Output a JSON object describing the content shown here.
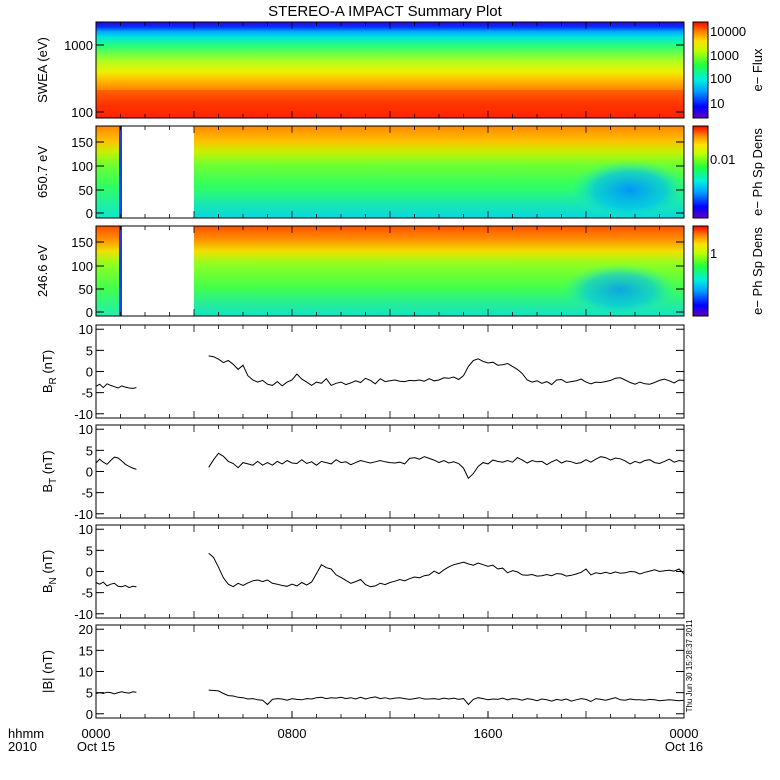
{
  "title": "STEREO-A IMPACT Summary Plot",
  "x_axis": {
    "caption_line1": "hhmm",
    "caption_line2": "2010",
    "ticks": [
      {
        "hour": 0,
        "label": "0000",
        "sub": "Oct 15"
      },
      {
        "hour": 8,
        "label": "0800",
        "sub": ""
      },
      {
        "hour": 16,
        "label": "1600",
        "sub": ""
      },
      {
        "hour": 24,
        "label": "0000",
        "sub": "Oct 16"
      }
    ]
  },
  "timestamp": "Thu Jun 30 15:28:37 2011",
  "chart_data": [
    {
      "type": "heatmap",
      "id": "swea",
      "ylabel": "SWEA (eV)",
      "yscale": "log",
      "ylim": [
        90,
        2200
      ],
      "yticks": [
        100,
        1000
      ],
      "ytick_labels": [
        "100",
        "1000"
      ],
      "xlim_hours": [
        0,
        24
      ],
      "colorbar": {
        "label": "e− Flux",
        "ticks": [
          "10",
          "100",
          "1000",
          "10000"
        ]
      },
      "data_gaps_hours": []
    },
    {
      "type": "heatmap",
      "id": "pad650",
      "ylabel": "650.7 eV",
      "ylim": [
        -10,
        180
      ],
      "yticks": [
        0,
        50,
        100,
        150
      ],
      "xlim_hours": [
        0,
        24
      ],
      "colorbar": {
        "label": "e− Ph Sp Dens",
        "ticks": [
          "0.01"
        ]
      },
      "data_gaps_hours": [
        [
          1.7,
          5.0
        ]
      ]
    },
    {
      "type": "heatmap",
      "id": "pad246",
      "ylabel": "246.6 eV",
      "ylim": [
        -10,
        180
      ],
      "yticks": [
        0,
        50,
        100,
        150
      ],
      "xlim_hours": [
        0,
        24
      ],
      "colorbar": {
        "label": "e− Ph Sp Dens",
        "ticks": [
          "1"
        ]
      },
      "data_gaps_hours": [
        [
          1.7,
          5.0
        ]
      ]
    },
    {
      "type": "line",
      "id": "br",
      "ylabel_base": "B",
      "ylabel_sub": "R",
      "ylabel_unit": "(nT)",
      "ylim": [
        -11,
        11
      ],
      "yticks": [
        -10,
        -5,
        0,
        5,
        10
      ],
      "xlim_hours": [
        0,
        24
      ],
      "x": [
        0,
        0.15,
        0.3,
        0.45,
        0.6,
        0.75,
        0.9,
        1.05,
        1.2,
        1.35,
        1.5,
        1.65,
        4.6,
        4.8,
        5.0,
        5.2,
        5.4,
        5.6,
        5.8,
        6.0,
        6.2,
        6.4,
        6.6,
        6.8,
        7.0,
        7.2,
        7.4,
        7.6,
        7.8,
        8.0,
        8.2,
        8.4,
        8.6,
        8.8,
        9.0,
        9.2,
        9.4,
        9.6,
        9.8,
        10.0,
        10.2,
        10.4,
        10.6,
        10.8,
        11.0,
        11.2,
        11.4,
        11.6,
        11.8,
        12.0,
        12.2,
        12.4,
        12.6,
        12.8,
        13.0,
        13.2,
        13.4,
        13.6,
        13.8,
        14.0,
        14.2,
        14.4,
        14.6,
        14.8,
        15.0,
        15.2,
        15.4,
        15.6,
        15.8,
        16.0,
        16.2,
        16.4,
        16.6,
        16.8,
        17.0,
        17.2,
        17.4,
        17.6,
        17.8,
        18.0,
        18.2,
        18.4,
        18.6,
        18.8,
        19.0,
        19.2,
        19.4,
        19.6,
        19.8,
        20.0,
        20.2,
        20.4,
        20.6,
        20.8,
        21.0,
        21.2,
        21.4,
        21.6,
        21.8,
        22.0,
        22.2,
        22.4,
        22.6,
        22.8,
        23.0,
        23.2,
        23.4,
        23.6,
        23.8,
        24.0
      ],
      "y": [
        -3.5,
        -3.0,
        -3.8,
        -2.9,
        -3.3,
        -3.6,
        -3.9,
        -3.4,
        -3.7,
        -3.9,
        -4.0,
        -3.8,
        3.7,
        3.5,
        2.9,
        2.1,
        2.6,
        1.7,
        0.5,
        1.5,
        -1.0,
        -2.0,
        -2.5,
        -2.1,
        -3.0,
        -3.3,
        -2.4,
        -3.4,
        -2.5,
        -2.0,
        -0.6,
        -1.8,
        -2.5,
        -3.3,
        -2.5,
        -2.8,
        -1.7,
        -3.3,
        -2.8,
        -2.5,
        -3.1,
        -2.7,
        -2.2,
        -2.6,
        -1.6,
        -2.1,
        -2.9,
        -1.7,
        -2.4,
        -2.2,
        -2.0,
        -2.3,
        -2.4,
        -2.1,
        -2.2,
        -2.0,
        -2.3,
        -1.7,
        -2.2,
        -2.0,
        -1.5,
        -1.6,
        -1.3,
        -1.9,
        -1.0,
        1.2,
        2.6,
        3.0,
        2.4,
        2.0,
        2.2,
        1.5,
        1.6,
        1.9,
        1.2,
        0.5,
        -0.5,
        -2.0,
        -2.5,
        -2.2,
        -2.8,
        -2.4,
        -3.1,
        -2.0,
        -1.9,
        -2.6,
        -2.4,
        -2.2,
        -1.8,
        -2.5,
        -2.9,
        -2.5,
        -2.6,
        -2.4,
        -2.1,
        -1.6,
        -1.5,
        -2.0,
        -2.6,
        -3.0,
        -2.5,
        -2.9,
        -3.0,
        -2.6,
        -2.1,
        -1.8,
        -2.2,
        -2.7,
        -2.0,
        -2.1
      ]
    },
    {
      "type": "line",
      "id": "bt",
      "ylabel_base": "B",
      "ylabel_sub": "T",
      "ylabel_unit": "(nT)",
      "ylim": [
        -11,
        11
      ],
      "yticks": [
        -10,
        -5,
        0,
        5,
        10
      ],
      "xlim_hours": [
        0,
        24
      ],
      "x": [
        0,
        0.15,
        0.3,
        0.45,
        0.6,
        0.75,
        0.9,
        1.05,
        1.2,
        1.35,
        1.5,
        1.65,
        4.6,
        4.8,
        5.0,
        5.2,
        5.4,
        5.6,
        5.8,
        6.0,
        6.2,
        6.4,
        6.6,
        6.8,
        7.0,
        7.2,
        7.4,
        7.6,
        7.8,
        8.0,
        8.2,
        8.4,
        8.6,
        8.8,
        9.0,
        9.2,
        9.4,
        9.6,
        9.8,
        10.0,
        10.2,
        10.4,
        10.6,
        10.8,
        11.0,
        11.2,
        11.4,
        11.6,
        11.8,
        12.0,
        12.2,
        12.4,
        12.6,
        12.8,
        13.0,
        13.2,
        13.4,
        13.6,
        13.8,
        14.0,
        14.2,
        14.4,
        14.6,
        14.8,
        15.0,
        15.2,
        15.4,
        15.6,
        15.8,
        16.0,
        16.2,
        16.4,
        16.6,
        16.8,
        17.0,
        17.2,
        17.4,
        17.6,
        17.8,
        18.0,
        18.2,
        18.4,
        18.6,
        18.8,
        19.0,
        19.2,
        19.4,
        19.6,
        19.8,
        20.0,
        20.2,
        20.4,
        20.6,
        20.8,
        21.0,
        21.2,
        21.4,
        21.6,
        21.8,
        22.0,
        22.2,
        22.4,
        22.6,
        22.8,
        23.0,
        23.2,
        23.4,
        23.6,
        23.8,
        24.0
      ],
      "y": [
        2.0,
        2.9,
        2.2,
        1.7,
        2.6,
        3.4,
        3.2,
        2.5,
        1.7,
        1.2,
        0.8,
        0.5,
        1.0,
        2.8,
        4.3,
        3.6,
        2.4,
        1.9,
        0.9,
        2.1,
        1.8,
        1.5,
        2.4,
        1.5,
        2.1,
        1.5,
        2.4,
        1.8,
        2.6,
        2.0,
        1.9,
        2.8,
        1.9,
        2.3,
        1.5,
        2.4,
        2.1,
        1.8,
        2.8,
        2.1,
        2.3,
        1.6,
        2.1,
        2.6,
        2.3,
        2.0,
        2.3,
        2.6,
        2.3,
        2.1,
        2.0,
        2.2,
        1.8,
        3.1,
        3.3,
        2.9,
        3.5,
        3.1,
        2.7,
        2.1,
        2.6,
        2.0,
        2.3,
        1.9,
        0.8,
        -1.6,
        -0.5,
        1.2,
        2.1,
        1.8,
        2.7,
        2.4,
        2.2,
        2.6,
        2.2,
        3.3,
        2.7,
        2.0,
        2.6,
        2.3,
        2.4,
        1.6,
        2.3,
        2.8,
        2.0,
        2.5,
        2.3,
        1.9,
        2.1,
        2.8,
        2.2,
        2.9,
        3.5,
        3.3,
        2.7,
        3.2,
        3.0,
        2.5,
        1.8,
        2.4,
        2.0,
        2.6,
        2.8,
        2.1,
        1.9,
        2.4,
        2.9,
        2.2,
        2.6,
        2.4
      ]
    },
    {
      "type": "line",
      "id": "bn",
      "ylabel_base": "B",
      "ylabel_sub": "N",
      "ylabel_unit": "(nT)",
      "ylim": [
        -11,
        11
      ],
      "yticks": [
        -10,
        -5,
        0,
        5,
        10
      ],
      "xlim_hours": [
        0,
        24
      ],
      "x": [
        0,
        0.15,
        0.3,
        0.45,
        0.6,
        0.75,
        0.9,
        1.05,
        1.2,
        1.35,
        1.5,
        1.65,
        4.6,
        4.8,
        5.0,
        5.2,
        5.4,
        5.6,
        5.8,
        6.0,
        6.2,
        6.4,
        6.6,
        6.8,
        7.0,
        7.2,
        7.4,
        7.6,
        7.8,
        8.0,
        8.2,
        8.4,
        8.6,
        8.8,
        9.0,
        9.2,
        9.4,
        9.6,
        9.8,
        10.0,
        10.2,
        10.4,
        10.6,
        10.8,
        11.0,
        11.2,
        11.4,
        11.6,
        11.8,
        12.0,
        12.2,
        12.4,
        12.6,
        12.8,
        13.0,
        13.2,
        13.4,
        13.6,
        13.8,
        14.0,
        14.2,
        14.4,
        14.6,
        14.8,
        15.0,
        15.2,
        15.4,
        15.6,
        15.8,
        16.0,
        16.2,
        16.4,
        16.6,
        16.8,
        17.0,
        17.2,
        17.4,
        17.6,
        17.8,
        18.0,
        18.2,
        18.4,
        18.6,
        18.8,
        19.0,
        19.2,
        19.4,
        19.6,
        19.8,
        20.0,
        20.2,
        20.4,
        20.6,
        20.8,
        21.0,
        21.2,
        21.4,
        21.6,
        21.8,
        22.0,
        22.2,
        22.4,
        22.6,
        22.8,
        23.0,
        23.2,
        23.4,
        23.6,
        23.8,
        24.0
      ],
      "y": [
        -2.6,
        -3.0,
        -2.5,
        -3.4,
        -3.0,
        -2.8,
        -3.5,
        -3.6,
        -3.3,
        -3.8,
        -3.5,
        -3.6,
        4.3,
        3.3,
        1.0,
        -1.5,
        -3.0,
        -3.6,
        -2.8,
        -3.3,
        -2.7,
        -2.2,
        -2.0,
        -2.4,
        -2.0,
        -2.8,
        -3.0,
        -3.3,
        -3.5,
        -3.0,
        -3.4,
        -2.6,
        -3.2,
        -2.5,
        -0.5,
        1.6,
        0.9,
        0.6,
        -0.8,
        -1.4,
        -2.1,
        -2.8,
        -2.4,
        -1.9,
        -3.1,
        -3.6,
        -3.4,
        -2.8,
        -3.1,
        -2.6,
        -2.3,
        -1.9,
        -2.2,
        -1.7,
        -1.3,
        -1.5,
        -1.0,
        -0.8,
        0.1,
        -0.5,
        0.4,
        1.1,
        1.6,
        1.9,
        2.2,
        1.8,
        1.5,
        2.0,
        1.6,
        1.2,
        1.5,
        0.6,
        0.8,
        -0.3,
        0.2,
        -0.1,
        -0.8,
        -0.9,
        -0.7,
        -1.1,
        -1.0,
        -0.7,
        -1.0,
        -0.5,
        -0.6,
        -1.1,
        -0.9,
        -0.6,
        -0.2,
        0.6,
        -0.8,
        -0.3,
        -0.5,
        -0.2,
        -0.5,
        -0.1,
        -0.4,
        -0.3,
        0.0,
        -0.1,
        -0.6,
        -0.2,
        0.1,
        0.4,
        0.0,
        0.2,
        0.3,
        0.1,
        0.6,
        -0.6
      ]
    },
    {
      "type": "line",
      "id": "bmag",
      "ylabel_base": "|B|",
      "ylabel_sub": "",
      "ylabel_unit": "(nT)",
      "ylim": [
        -1,
        21
      ],
      "yticks": [
        0,
        5,
        10,
        15,
        20
      ],
      "xlim_hours": [
        0,
        24
      ],
      "x": [
        0,
        0.15,
        0.3,
        0.45,
        0.6,
        0.75,
        0.9,
        1.05,
        1.2,
        1.35,
        1.5,
        1.65,
        4.6,
        4.8,
        5.0,
        5.2,
        5.4,
        5.6,
        5.8,
        6.0,
        6.2,
        6.4,
        6.6,
        6.8,
        7.0,
        7.2,
        7.4,
        7.6,
        7.8,
        8.0,
        8.2,
        8.4,
        8.6,
        8.8,
        9.0,
        9.2,
        9.4,
        9.6,
        9.8,
        10.0,
        10.2,
        10.4,
        10.6,
        10.8,
        11.0,
        11.2,
        11.4,
        11.6,
        11.8,
        12.0,
        12.2,
        12.4,
        12.6,
        12.8,
        13.0,
        13.2,
        13.4,
        13.6,
        13.8,
        14.0,
        14.2,
        14.4,
        14.6,
        14.8,
        15.0,
        15.2,
        15.4,
        15.6,
        15.8,
        16.0,
        16.2,
        16.4,
        16.6,
        16.8,
        17.0,
        17.2,
        17.4,
        17.6,
        17.8,
        18.0,
        18.2,
        18.4,
        18.6,
        18.8,
        19.0,
        19.2,
        19.4,
        19.6,
        19.8,
        20.0,
        20.2,
        20.4,
        20.6,
        20.8,
        21.0,
        21.2,
        21.4,
        21.6,
        21.8,
        22.0,
        22.2,
        22.4,
        22.6,
        22.8,
        23.0,
        23.2,
        23.4,
        23.6,
        23.8,
        24.0
      ],
      "y": [
        4.8,
        5.0,
        4.8,
        5.1,
        5.0,
        4.7,
        5.0,
        5.2,
        5.0,
        4.9,
        5.2,
        5.1,
        5.6,
        5.5,
        5.4,
        4.8,
        4.3,
        4.2,
        3.9,
        3.8,
        3.5,
        3.6,
        3.3,
        3.2,
        2.2,
        3.4,
        3.6,
        3.5,
        3.2,
        3.6,
        3.4,
        3.3,
        3.6,
        3.5,
        3.8,
        3.9,
        3.6,
        3.8,
        3.7,
        3.9,
        3.6,
        3.8,
        3.5,
        3.9,
        3.5,
        3.8,
        4.0,
        3.6,
        3.8,
        3.5,
        3.7,
        3.8,
        3.6,
        3.4,
        3.6,
        3.8,
        3.5,
        3.5,
        3.6,
        3.4,
        3.7,
        3.5,
        3.7,
        3.4,
        3.6,
        2.2,
        3.4,
        3.8,
        3.6,
        3.3,
        3.5,
        3.4,
        3.7,
        3.3,
        3.6,
        3.5,
        3.2,
        3.6,
        3.4,
        3.1,
        3.5,
        3.3,
        3.0,
        3.4,
        3.2,
        3.5,
        3.0,
        3.3,
        3.6,
        3.4,
        2.9,
        3.6,
        3.4,
        3.2,
        3.5,
        3.8,
        3.3,
        3.2,
        3.5,
        3.3,
        3.3,
        3.2,
        3.4,
        3.3,
        3.1,
        3.2,
        3.3,
        3.2,
        3.1,
        3.2
      ]
    }
  ]
}
